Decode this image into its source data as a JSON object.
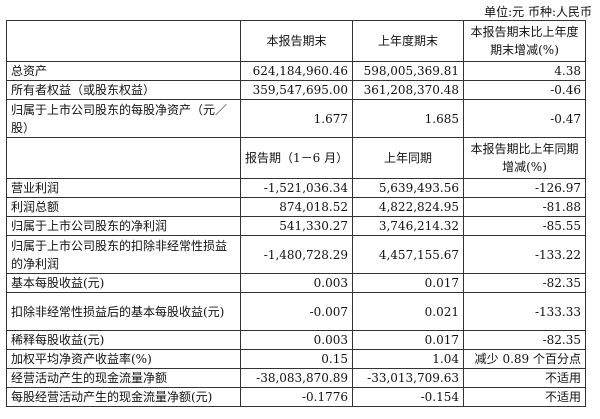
{
  "unit_note": "单位:元 币种:人民币",
  "header1": [
    "",
    "本报告期末",
    "上年度期末",
    "本报告期末比上年度期末增减(%)"
  ],
  "rows1": [
    {
      "label": "总资产",
      "v1": "624,184,960.46",
      "v2": "598,005,369.81",
      "v3": "4.38"
    },
    {
      "label": "所有者权益（或股东权益）",
      "v1": "359,547,695.00",
      "v2": "361,208,370.48",
      "v3": "-0.46"
    },
    {
      "label": "归属于上市公司股东的每股净资产（元／股）",
      "v1": "1.677",
      "v2": "1.685",
      "v3": "-0.47"
    }
  ],
  "header2": [
    "",
    "报告期（1－6 月）",
    "上年同期",
    "本报告期比上年同期增减(%)"
  ],
  "rows2": [
    {
      "label": "营业利润",
      "v1": "-1,521,036.34",
      "v2": "5,639,493.56",
      "v3": "-126.97"
    },
    {
      "label": "利润总额",
      "v1": "874,018.52",
      "v2": "4,822,824.95",
      "v3": "-81.88"
    },
    {
      "label": "归属于上市公司股东的净利润",
      "v1": "541,330.27",
      "v2": "3,746,214.32",
      "v3": "-85.55"
    },
    {
      "label": "归属于上市公司股东的扣除非经常性损益的净利润",
      "v1": "-1,480,728.29",
      "v2": "4,457,155.67",
      "v3": "-133.22"
    },
    {
      "label": "基本每股收益(元)",
      "v1": "0.003",
      "v2": "0.017",
      "v3": "-82.35"
    },
    {
      "label": "扣除非经常性损益后的基本每股收益(元)",
      "v1": "-0.007",
      "v2": "0.021",
      "v3": "-133.33"
    },
    {
      "label": "稀释每股收益(元)",
      "v1": "0.003",
      "v2": "0.017",
      "v3": "-82.35"
    },
    {
      "label": "加权平均净资产收益率(%)",
      "v1": "0.15",
      "v2": "1.04",
      "v3": "减少 0.89 个百分点"
    },
    {
      "label": "经营活动产生的现金流量净额",
      "v1": "-38,083,870.89",
      "v2": "-33,013,709.63",
      "v3": "不适用"
    },
    {
      "label": "每股经营活动产生的现金流量净额(元)",
      "v1": "-0.1776",
      "v2": "-0.154",
      "v3": "不适用"
    }
  ]
}
